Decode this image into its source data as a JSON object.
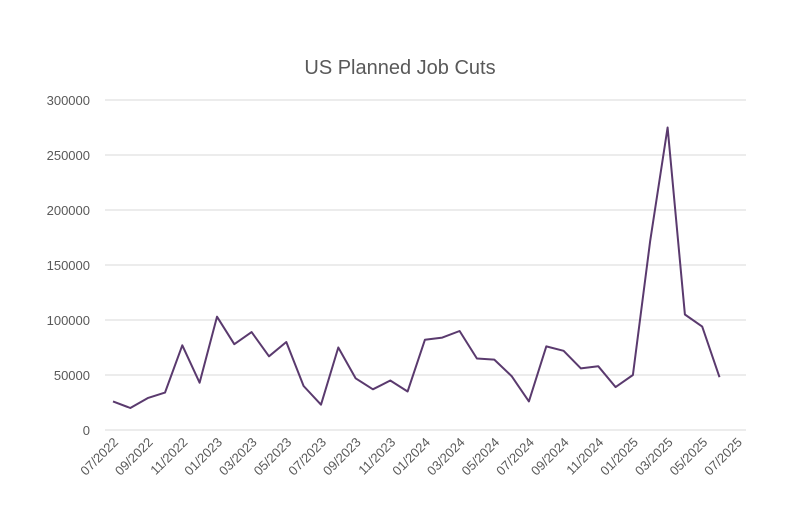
{
  "chart_data": {
    "type": "line",
    "title": "US Planned Job Cuts",
    "xlabel": "",
    "ylabel": "",
    "ylim": [
      0,
      300000
    ],
    "yticks": [
      "0",
      "50000",
      "100000",
      "150000",
      "200000",
      "250000",
      "300000"
    ],
    "xticks": [
      "07/2022",
      "09/2022",
      "11/2022",
      "01/2023",
      "03/2023",
      "05/2023",
      "07/2023",
      "09/2023",
      "11/2023",
      "01/2024",
      "03/2024",
      "05/2024",
      "07/2024",
      "09/2024",
      "11/2024",
      "01/2025",
      "03/2025",
      "05/2025",
      "07/2025"
    ],
    "grid": true,
    "legend": "none",
    "x": [
      "2022-07",
      "2022-08",
      "2022-09",
      "2022-10",
      "2022-11",
      "2022-12",
      "2023-01",
      "2023-02",
      "2023-03",
      "2023-04",
      "2023-05",
      "2023-06",
      "2023-07",
      "2023-08",
      "2023-09",
      "2023-10",
      "2023-11",
      "2023-12",
      "2024-01",
      "2024-02",
      "2024-03",
      "2024-04",
      "2024-05",
      "2024-06",
      "2024-07",
      "2024-08",
      "2024-09",
      "2024-10",
      "2024-11",
      "2024-12",
      "2025-01",
      "2025-02",
      "2025-03",
      "2025-04",
      "2025-05",
      "2025-06"
    ],
    "series": [
      {
        "values": [
          26000,
          20000,
          29000,
          34000,
          77000,
          43000,
          103000,
          78000,
          89000,
          67000,
          80000,
          40000,
          23000,
          75000,
          47000,
          37000,
          45000,
          35000,
          82000,
          84000,
          90000,
          65000,
          64000,
          49000,
          26000,
          76000,
          72000,
          56000,
          58000,
          39000,
          50000,
          172000,
          275000,
          105000,
          94000,
          48000
        ]
      }
    ],
    "colors": {
      "line": "#5a3a6e",
      "grid": "#d9d9d9",
      "text": "#595959"
    }
  }
}
